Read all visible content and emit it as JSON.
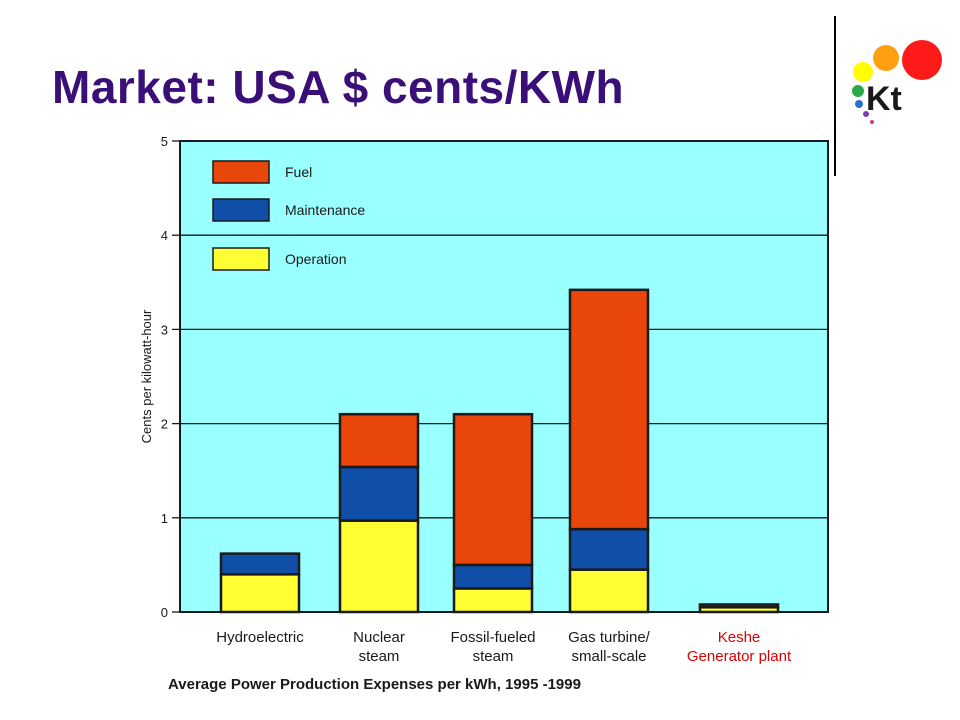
{
  "slide": {
    "title": "Market: USA $ cents/KWh",
    "logo_text": "Kt"
  },
  "colors": {
    "title": "#3a0f78",
    "plot_background": "#99ffff",
    "fuel": "#e8460a",
    "maintenance": "#0f4fa8",
    "operation": "#ffff33",
    "highlight_label": "#e00000",
    "logo_dots": [
      "#ffa012",
      "#ff1a1a",
      "#ffff00",
      "#2ba84a",
      "#2b6fd6",
      "#7b3fb5"
    ]
  },
  "chart_data": {
    "type": "bar",
    "stacked": true,
    "ylabel": "Cents per kilowatt-hour",
    "xlabel": "Average Power Production Expenses per kWh, 1995 -1999",
    "ylim": [
      0,
      5
    ],
    "yticks": [
      "0",
      "1",
      "2",
      "3",
      "4",
      "5"
    ],
    "grid": true,
    "legend_position": "top-left",
    "categories": [
      {
        "line1": "Hydroelectric",
        "line2": "",
        "highlight": false
      },
      {
        "line1": "Nuclear",
        "line2": "steam",
        "highlight": false
      },
      {
        "line1": "Fossil-fueled",
        "line2": "steam",
        "highlight": false
      },
      {
        "line1": "Gas turbine/",
        "line2": "small-scale",
        "highlight": false
      },
      {
        "line1": "Keshe",
        "line2": "Generator plant",
        "highlight": true
      }
    ],
    "series": [
      {
        "name": "Operation",
        "color_key": "operation",
        "values": [
          0.4,
          0.97,
          0.25,
          0.45,
          0.05
        ]
      },
      {
        "name": "Maintenance",
        "color_key": "maintenance",
        "values": [
          0.22,
          0.57,
          0.25,
          0.43,
          0.03
        ]
      },
      {
        "name": "Fuel",
        "color_key": "fuel",
        "values": [
          0,
          0.56,
          1.6,
          2.54,
          0
        ]
      }
    ],
    "legend_order": [
      "Fuel",
      "Maintenance",
      "Operation"
    ]
  }
}
